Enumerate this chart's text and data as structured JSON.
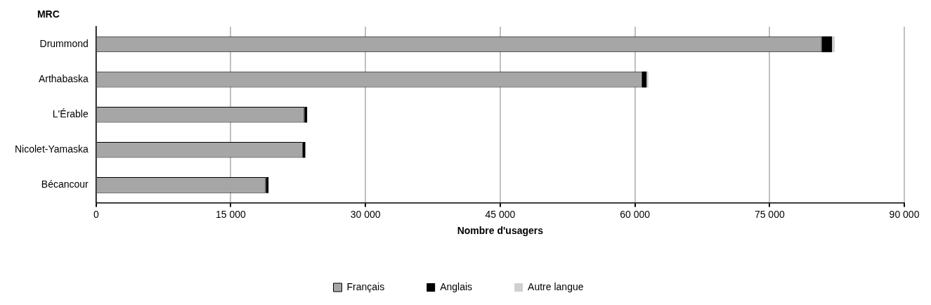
{
  "chart_data": {
    "type": "bar",
    "orientation": "horizontal",
    "stacked": true,
    "ylabel": "MRC",
    "xlabel": "Nombre d'usagers",
    "categories": [
      "Drummond",
      "Arthabaska",
      "L'Érable",
      "Nicolet-Yamaska",
      "Bécancour"
    ],
    "series": [
      {
        "name": "Français",
        "color": "#a6a6a6",
        "values": [
          80800,
          60800,
          23200,
          23000,
          18900
        ]
      },
      {
        "name": "Anglais",
        "color": "#000000",
        "values": [
          1150,
          500,
          300,
          300,
          300
        ]
      },
      {
        "name": "Autre langue",
        "color": "#d0d0d0",
        "values": [
          300,
          200,
          null,
          null,
          null
        ]
      }
    ],
    "xlim": [
      0,
      90000
    ],
    "xticks": [
      {
        "value": 0,
        "label": "0"
      },
      {
        "value": 15000,
        "label": "15 000"
      },
      {
        "value": 30000,
        "label": "30 000"
      },
      {
        "value": 45000,
        "label": "45 000"
      },
      {
        "value": 60000,
        "label": "60 000"
      },
      {
        "value": 75000,
        "label": "75 000"
      },
      {
        "value": 90000,
        "label": "90 000"
      }
    ],
    "grid": "x",
    "legend": "bottom"
  }
}
